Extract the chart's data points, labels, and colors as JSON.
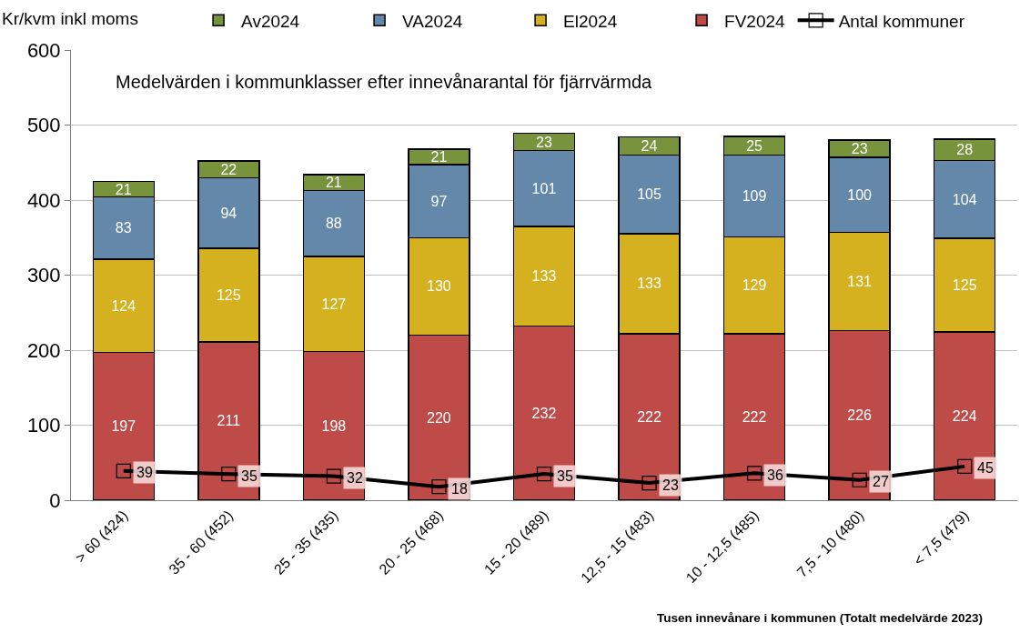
{
  "chart_data": {
    "type": "bar",
    "stacked": true,
    "title": "Medelvärden i kommunklasser efter innevånarantal för fjärrvärmda",
    "ylabel": "Kr/kvm inkl moms",
    "xlabel": "Tusen innevånare i kommunen (Totalt medelvärde 2023)",
    "categories": [
      "> 60 (424)",
      "35 - 60 (452)",
      "25 - 35 (435)",
      "20 - 25 (468)",
      "15 - 20 (489)",
      "12,5 - 15 (483)",
      "10 - 12,5 (485)",
      "7,5 - 10 (480)",
      "< 7,5 (479)"
    ],
    "series": [
      {
        "name": "FV2024",
        "color": "#be4b48",
        "values": [
          197,
          211,
          198,
          220,
          232,
          222,
          222,
          226,
          224
        ]
      },
      {
        "name": "El2024",
        "color": "#d5b11f",
        "values": [
          124,
          125,
          127,
          130,
          133,
          133,
          129,
          131,
          125
        ]
      },
      {
        "name": "VA2024",
        "color": "#6388a9",
        "values": [
          83,
          94,
          88,
          97,
          101,
          105,
          109,
          100,
          104
        ]
      },
      {
        "name": "Av2024",
        "color": "#77933c",
        "values": [
          21,
          22,
          21,
          21,
          23,
          24,
          25,
          23,
          28
        ]
      },
      {
        "name": "Antal kommuner",
        "type": "line",
        "color": "#000000",
        "marker": "square",
        "values": [
          39,
          35,
          32,
          18,
          35,
          23,
          36,
          27,
          45
        ]
      }
    ],
    "ylim": [
      0,
      600
    ],
    "yticks": [
      0,
      100,
      200,
      300,
      400,
      500,
      600
    ],
    "grid": "y",
    "legend": "top",
    "data_labels": true
  }
}
